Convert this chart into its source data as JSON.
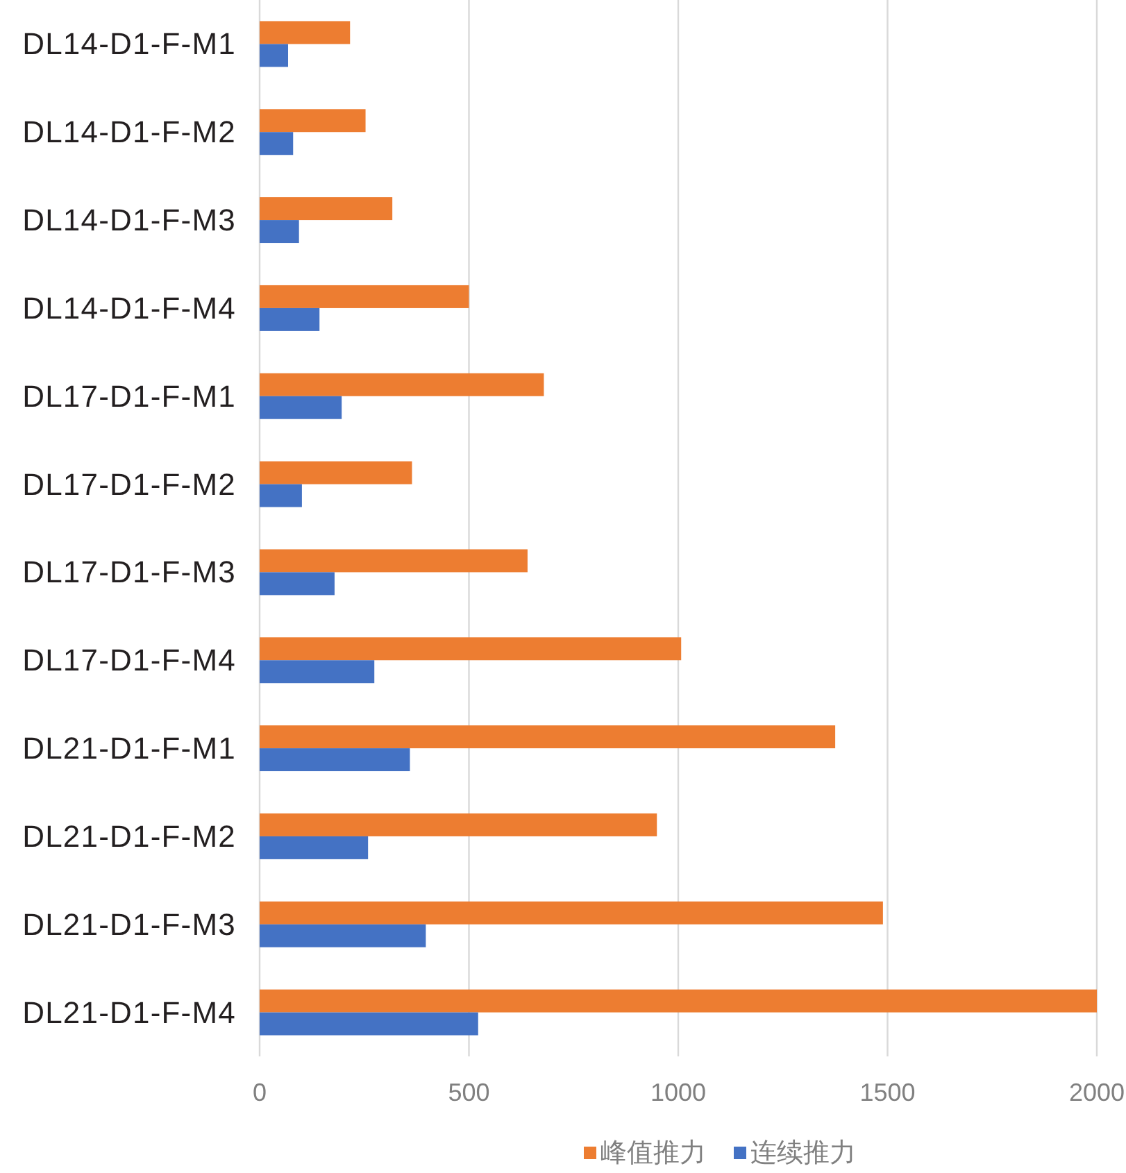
{
  "chart_data": {
    "type": "bar",
    "orientation": "horizontal",
    "categories": [
      "DL14-D1-F-M1",
      "DL14-D1-F-M2",
      "DL14-D1-F-M3",
      "DL14-D1-F-M4",
      "DL17-D1-F-M1",
      "DL17-D1-F-M2",
      "DL17-D1-F-M3",
      "DL17-D1-F-M4",
      "DL21-D1-F-M1",
      "DL21-D1-F-M2",
      "DL21-D1-F-M3",
      "DL21-D1-F-M4"
    ],
    "series": [
      {
        "name": "峰值推力",
        "color": "#ed7d31",
        "values": [
          216,
          253,
          317,
          500,
          679,
          364,
          640,
          1007,
          1375,
          949,
          1489,
          2000
        ]
      },
      {
        "name": "连续推力",
        "color": "#4472c4",
        "values": [
          68,
          80,
          94,
          143,
          196,
          101,
          179,
          274,
          359,
          259,
          397,
          522
        ]
      }
    ],
    "xlim": [
      0,
      2000
    ],
    "xticks": [
      0,
      500,
      1000,
      1500,
      2000
    ],
    "grid": "x",
    "legend": "bottom"
  }
}
